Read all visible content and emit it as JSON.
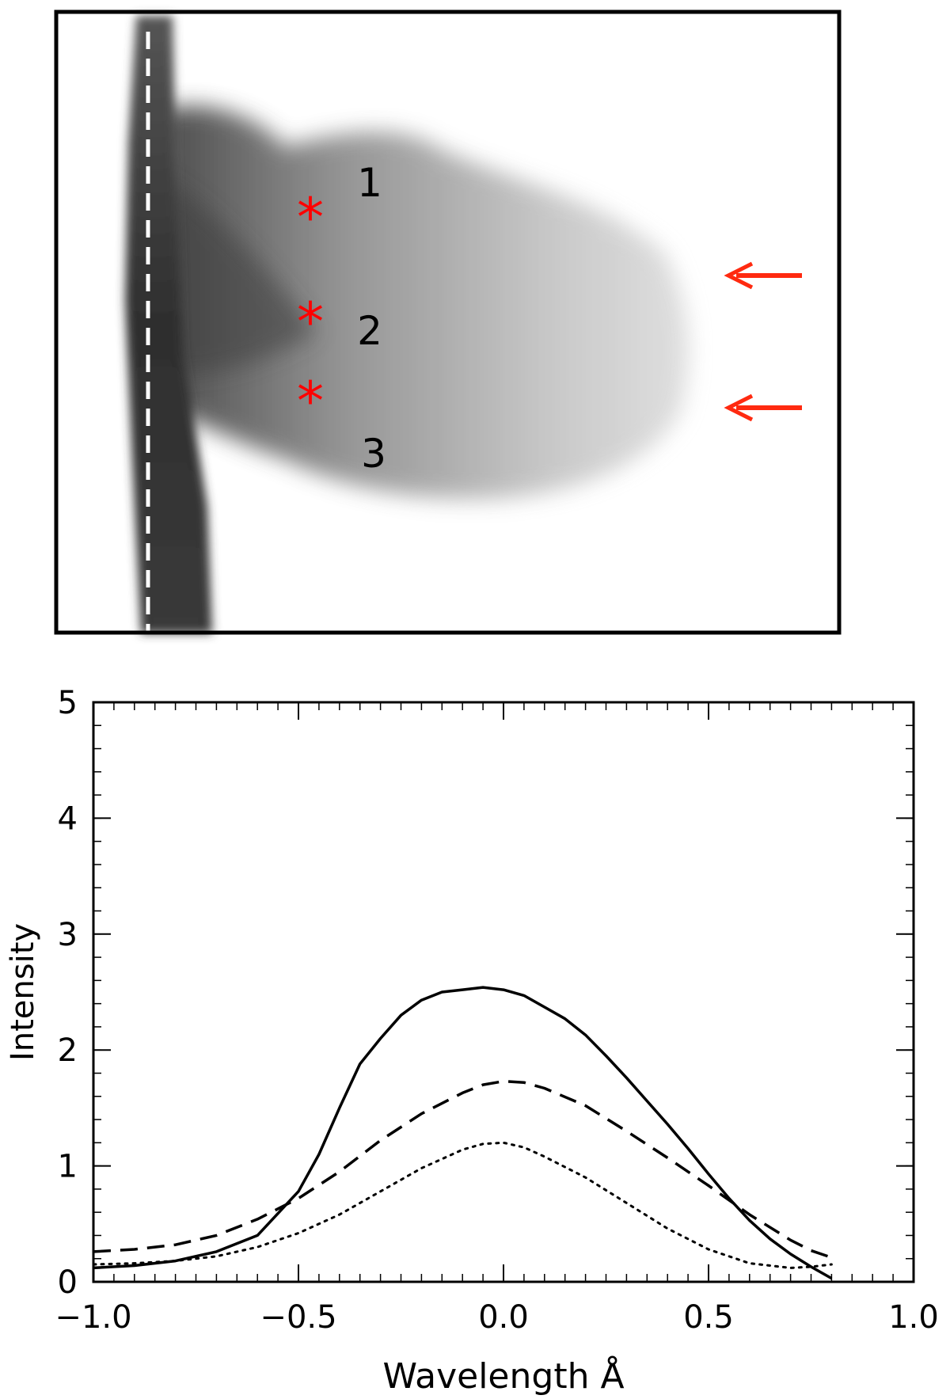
{
  "panel_image": {
    "region_labels": [
      "1",
      "2",
      "3"
    ],
    "marker_glyph": "*",
    "marker_color": "#ff0000",
    "arrow_color": "#ff2a10",
    "arrow_icon": "left-arrow-icon",
    "arrow_count": 2,
    "dashed_line_color": "#ffffff"
  },
  "chart_data": {
    "type": "line",
    "title": "",
    "xlabel": "Wavelength Å",
    "ylabel": "Intensity",
    "xlim": [
      -1.0,
      1.0
    ],
    "ylim": [
      0,
      5
    ],
    "x_ticks": [
      -1.0,
      -0.5,
      0.0,
      0.5,
      1.0
    ],
    "x_tick_labels": [
      "−1.0",
      "−0.5",
      "0.0",
      "0.5",
      "1.0"
    ],
    "y_ticks": [
      0,
      1,
      2,
      3,
      4,
      5
    ],
    "y_tick_labels": [
      "0",
      "1",
      "2",
      "3",
      "4",
      "5"
    ],
    "grid": false,
    "series": [
      {
        "style": "solid",
        "x": [
          -1.0,
          -0.9,
          -0.8,
          -0.7,
          -0.6,
          -0.5,
          -0.45,
          -0.4,
          -0.35,
          -0.3,
          -0.25,
          -0.2,
          -0.15,
          -0.1,
          -0.05,
          0.0,
          0.05,
          0.1,
          0.15,
          0.2,
          0.25,
          0.3,
          0.35,
          0.4,
          0.45,
          0.5,
          0.55,
          0.6,
          0.65,
          0.7,
          0.75,
          0.8
        ],
        "y": [
          0.12,
          0.14,
          0.18,
          0.26,
          0.4,
          0.78,
          1.1,
          1.5,
          1.88,
          2.1,
          2.3,
          2.43,
          2.5,
          2.52,
          2.54,
          2.52,
          2.47,
          2.37,
          2.27,
          2.13,
          1.95,
          1.76,
          1.56,
          1.36,
          1.15,
          0.93,
          0.72,
          0.53,
          0.37,
          0.24,
          0.13,
          0.03
        ]
      },
      {
        "style": "dashed",
        "x": [
          -1.0,
          -0.9,
          -0.8,
          -0.7,
          -0.6,
          -0.5,
          -0.4,
          -0.3,
          -0.2,
          -0.1,
          -0.05,
          0.0,
          0.05,
          0.1,
          0.2,
          0.3,
          0.4,
          0.5,
          0.6,
          0.7,
          0.75,
          0.8
        ],
        "y": [
          0.26,
          0.28,
          0.32,
          0.4,
          0.54,
          0.72,
          0.95,
          1.22,
          1.45,
          1.63,
          1.7,
          1.73,
          1.72,
          1.67,
          1.52,
          1.3,
          1.07,
          0.83,
          0.58,
          0.36,
          0.27,
          0.21
        ]
      },
      {
        "style": "dotted",
        "x": [
          -1.0,
          -0.9,
          -0.8,
          -0.7,
          -0.6,
          -0.5,
          -0.4,
          -0.3,
          -0.2,
          -0.1,
          -0.05,
          0.0,
          0.05,
          0.1,
          0.2,
          0.3,
          0.4,
          0.5,
          0.6,
          0.7,
          0.75,
          0.8
        ],
        "y": [
          0.15,
          0.16,
          0.18,
          0.22,
          0.3,
          0.42,
          0.58,
          0.78,
          0.98,
          1.14,
          1.19,
          1.2,
          1.16,
          1.08,
          0.9,
          0.68,
          0.46,
          0.28,
          0.16,
          0.12,
          0.13,
          0.15
        ]
      }
    ]
  }
}
